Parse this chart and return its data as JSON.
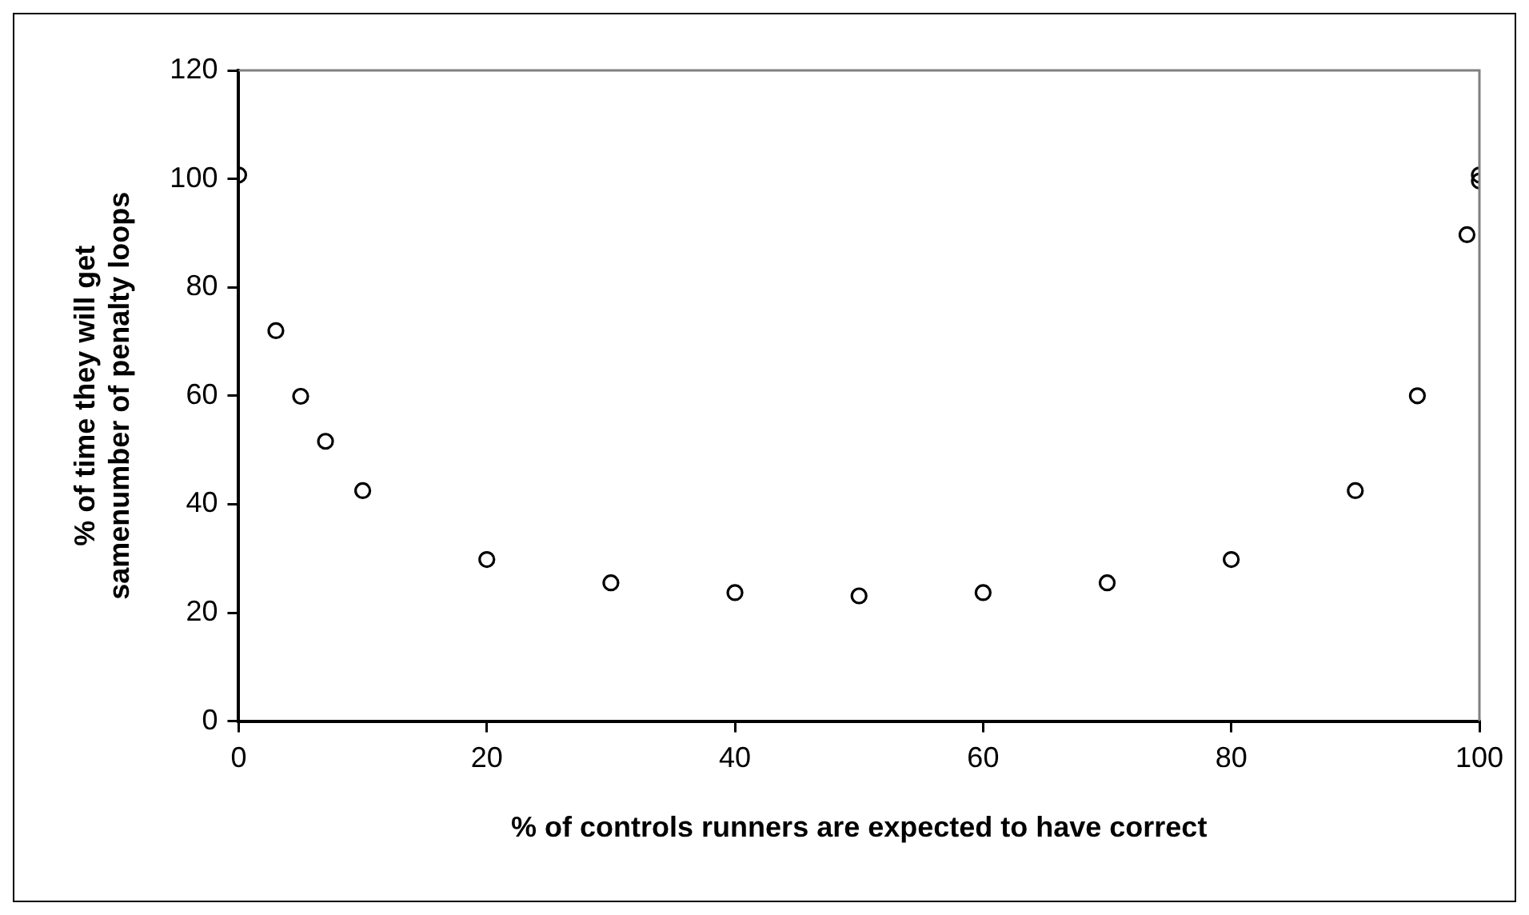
{
  "chart_data": {
    "type": "scatter",
    "xlabel": "% of controls runners are expected to have correct",
    "ylabel": "% of time they will get\nsamenumber of penalty loops",
    "x": [
      0,
      3,
      5,
      7,
      10,
      20,
      30,
      40,
      50,
      60,
      70,
      80,
      90,
      95,
      99,
      100,
      100
    ],
    "series": [
      {
        "color": "#000000",
        "values": [
          100.7,
          72,
          59.9,
          51.6,
          42.5,
          29.8,
          25.5,
          23.7,
          23.1,
          23.7,
          25.5,
          29.8,
          42.5,
          60,
          89.7,
          100.7,
          99.6
        ]
      }
    ],
    "xlim": [
      0,
      100
    ],
    "xticks": [
      0,
      20,
      40,
      60,
      80,
      100
    ],
    "ylim": [
      0,
      120
    ],
    "yticks": [
      0,
      20,
      40,
      60,
      80,
      100,
      120
    ],
    "grid": false,
    "legend": false,
    "marker": "circle"
  }
}
